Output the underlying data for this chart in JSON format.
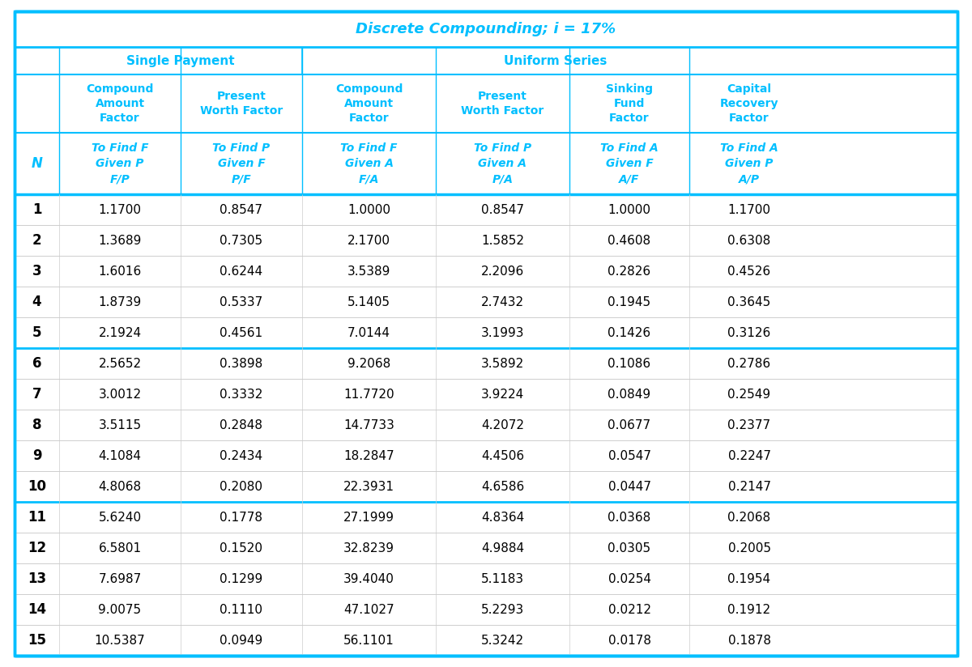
{
  "title": "Discrete Compounding; i = 17%",
  "col1_header": "Single Payment",
  "col2_header": "Uniform Series",
  "sub_headers_row1": [
    "Compound\nAmount\nFactor",
    "Present\nWorth Factor",
    "Compound\nAmount\nFactor",
    "Present\nWorth Factor",
    "Sinking\nFund\nFactor",
    "Capital\nRecovery\nFactor"
  ],
  "sub_headers_row2_line1": [
    "To Find F",
    "To Find P",
    "To Find F",
    "To Find P",
    "To Find A",
    "To Find A"
  ],
  "sub_headers_row2_line2": [
    "Given P",
    "Given F",
    "Given A",
    "Given A",
    "Given F",
    "Given P"
  ],
  "sub_headers_row2_line3": [
    "F/P",
    "P/F",
    "F/A",
    "P/A",
    "A/F",
    "A/P"
  ],
  "col_N": "N",
  "N_values": [
    1,
    2,
    3,
    4,
    5,
    6,
    7,
    8,
    9,
    10,
    11,
    12,
    13,
    14,
    15
  ],
  "FP_values": [
    1.17,
    1.3689,
    1.6016,
    1.8739,
    2.1924,
    2.5652,
    3.0012,
    3.5115,
    4.1084,
    4.8068,
    5.624,
    6.5801,
    7.6987,
    9.0075,
    10.5387
  ],
  "PF_values": [
    0.8547,
    0.7305,
    0.6244,
    0.5337,
    0.4561,
    0.3898,
    0.3332,
    0.2848,
    0.2434,
    0.208,
    0.1778,
    0.152,
    0.1299,
    0.111,
    0.0949
  ],
  "FA_values": [
    1.0,
    2.17,
    3.5389,
    5.1405,
    7.0144,
    9.2068,
    11.772,
    14.7733,
    18.2847,
    22.3931,
    27.1999,
    32.8239,
    39.404,
    47.1027,
    56.1101
  ],
  "PA_values": [
    0.8547,
    1.5852,
    2.2096,
    2.7432,
    3.1993,
    3.5892,
    3.9224,
    4.2072,
    4.4506,
    4.6586,
    4.8364,
    4.9884,
    5.1183,
    5.2293,
    5.3242
  ],
  "AF_values": [
    1.0,
    0.4608,
    0.2826,
    0.1945,
    0.1426,
    0.1086,
    0.0849,
    0.0677,
    0.0547,
    0.0447,
    0.0368,
    0.0305,
    0.0254,
    0.0212,
    0.0178
  ],
  "AP_values": [
    1.17,
    0.6308,
    0.4526,
    0.3645,
    0.3126,
    0.2786,
    0.2549,
    0.2377,
    0.2247,
    0.2147,
    0.2068,
    0.2005,
    0.1954,
    0.1912,
    0.1878
  ],
  "cyan": "#00BFFF",
  "black": "#000000",
  "white": "#FFFFFF",
  "group_sep_after": [
    4,
    9
  ],
  "title_fontsize": 13,
  "header_fontsize": 11,
  "subheader_fontsize": 10,
  "data_fontsize": 11,
  "n_col_fontsize": 12
}
